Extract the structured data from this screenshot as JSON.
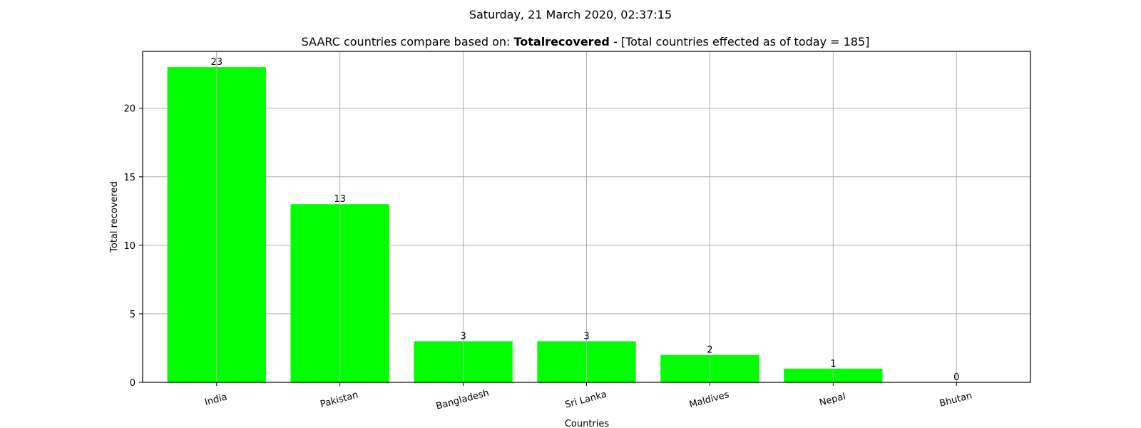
{
  "header": {
    "timestamp": "Saturday, 21 March 2020, 02:37:15",
    "title_prefix": "SAARC countries compare based on: ",
    "title_metric": "Totalrecovered",
    "title_suffix": " - [Total countries effected as of today = 185]"
  },
  "chart_data": {
    "type": "bar",
    "categories": [
      "India",
      "Pakistan",
      "Bangladesh",
      "Sri Lanka",
      "Maldives",
      "Nepal",
      "Bhutan"
    ],
    "values": [
      23,
      13,
      3,
      3,
      2,
      1,
      0
    ],
    "xlabel": "Countries",
    "ylabel": "Total recovered",
    "ylim": [
      0,
      24.15
    ],
    "yticks": [
      0,
      5,
      10,
      15,
      20
    ],
    "grid": true,
    "bar_color": "#00ff00",
    "data_labels": true
  }
}
